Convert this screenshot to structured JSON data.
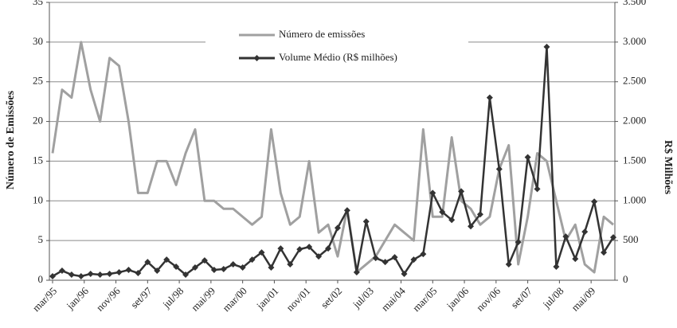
{
  "chart_data": {
    "type": "line",
    "ylabel": "Número de Emissões",
    "y2label": "R$ Milhões",
    "x": [
      0,
      3,
      6,
      9,
      12,
      15,
      18,
      21,
      24,
      27,
      30,
      33,
      36,
      39,
      42,
      45,
      48,
      51,
      54,
      57,
      60,
      63,
      66,
      69,
      72,
      75,
      78,
      81,
      84,
      87,
      90,
      93,
      96,
      99,
      102,
      105,
      108,
      111,
      114,
      117,
      120,
      123,
      126,
      129,
      132,
      135,
      138,
      141,
      144,
      147,
      150,
      153,
      156,
      159,
      162,
      165,
      168,
      171,
      174,
      177
    ],
    "xlim": [
      0,
      177
    ],
    "xticks": [
      {
        "value": 0,
        "label": "mar/95"
      },
      {
        "value": 10,
        "label": "jan/96"
      },
      {
        "value": 20,
        "label": "nov/96"
      },
      {
        "value": 30,
        "label": "set/97"
      },
      {
        "value": 40,
        "label": "jul/98"
      },
      {
        "value": 50,
        "label": "mai/99"
      },
      {
        "value": 60,
        "label": "mar/00"
      },
      {
        "value": 70,
        "label": "jan/01"
      },
      {
        "value": 80,
        "label": "nov/01"
      },
      {
        "value": 90,
        "label": "set/02"
      },
      {
        "value": 100,
        "label": "jul/03"
      },
      {
        "value": 110,
        "label": "mai/04"
      },
      {
        "value": 120,
        "label": "mar/05"
      },
      {
        "value": 130,
        "label": "jan/06"
      },
      {
        "value": 140,
        "label": "nov/06"
      },
      {
        "value": 150,
        "label": "set/07"
      },
      {
        "value": 160,
        "label": "jul/08"
      },
      {
        "value": 170,
        "label": "mai/09"
      }
    ],
    "ylim": [
      0,
      35
    ],
    "yticks": [
      0,
      5,
      10,
      15,
      20,
      25,
      30,
      35
    ],
    "y2lim": [
      0,
      3500
    ],
    "y2ticks": [
      0,
      500,
      {
        "value": 1000,
        "label": "1.000"
      },
      {
        "value": 1500,
        "label": "1.500"
      },
      {
        "value": 2000,
        "label": "2.000"
      },
      {
        "value": 2500,
        "label": "2.500"
      },
      {
        "value": 3000,
        "label": "3.000"
      },
      {
        "value": 3500,
        "label": "3.500"
      }
    ],
    "grid": true,
    "series": [
      {
        "name": "Número de emissões",
        "color": "#a0a0a0",
        "axis": "y",
        "markers": false,
        "values": [
          16,
          24,
          23,
          30,
          24,
          20,
          28,
          27,
          20,
          11,
          11,
          15,
          15,
          12,
          16,
          19,
          10,
          10,
          9,
          9,
          8,
          7,
          8,
          19,
          11,
          7,
          8,
          15,
          6,
          7,
          3,
          9,
          1,
          2,
          3,
          5,
          7,
          6,
          5,
          19,
          8,
          8,
          18,
          10,
          9,
          7,
          8,
          14,
          17,
          2,
          8,
          16,
          15,
          10,
          5,
          7,
          2,
          1,
          8,
          7
        ]
      },
      {
        "name": "Volume Médio (R$ milhões)",
        "color": "#333333",
        "axis": "y2",
        "markers": true,
        "values": [
          50,
          120,
          70,
          50,
          80,
          70,
          80,
          100,
          130,
          90,
          230,
          120,
          260,
          170,
          70,
          160,
          250,
          130,
          140,
          200,
          160,
          260,
          350,
          160,
          400,
          200,
          390,
          420,
          300,
          400,
          660,
          880,
          100,
          740,
          280,
          230,
          290,
          80,
          260,
          330,
          1100,
          860,
          760,
          1120,
          680,
          830,
          2300,
          1400,
          200,
          480,
          1550,
          1150,
          2940,
          170,
          550,
          270,
          610,
          990,
          350,
          540
        ]
      }
    ]
  }
}
